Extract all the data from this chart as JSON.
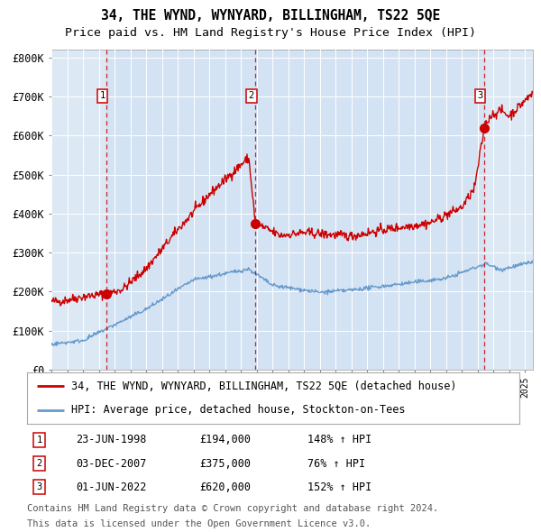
{
  "title": "34, THE WYND, WYNYARD, BILLINGHAM, TS22 5QE",
  "subtitle": "Price paid vs. HM Land Registry's House Price Index (HPI)",
  "legend_line1": "34, THE WYND, WYNYARD, BILLINGHAM, TS22 5QE (detached house)",
  "legend_line2": "HPI: Average price, detached house, Stockton-on-Tees",
  "footnote_line1": "Contains HM Land Registry data © Crown copyright and database right 2024.",
  "footnote_line2": "This data is licensed under the Open Government Licence v3.0.",
  "transactions": [
    {
      "num": 1,
      "date": "23-JUN-1998",
      "price": "£194,000",
      "pct": "148%",
      "dir": "↑",
      "label": "HPI"
    },
    {
      "num": 2,
      "date": "03-DEC-2007",
      "price": "£375,000",
      "pct": "76%",
      "dir": "↑",
      "label": "HPI"
    },
    {
      "num": 3,
      "date": "01-JUN-2022",
      "price": "£620,000",
      "pct": "152%",
      "dir": "↑",
      "label": "HPI"
    }
  ],
  "transaction_years": [
    1998.47,
    2007.92,
    2022.42
  ],
  "transaction_prices": [
    194000,
    375000,
    620000
  ],
  "ylim": [
    0,
    820000
  ],
  "yticks": [
    0,
    100000,
    200000,
    300000,
    400000,
    500000,
    600000,
    700000,
    800000
  ],
  "ytick_labels": [
    "£0",
    "£100K",
    "£200K",
    "£300K",
    "£400K",
    "£500K",
    "£600K",
    "£700K",
    "£800K"
  ],
  "xlim": [
    1995,
    2025.5
  ],
  "bg_color": "#dce9f5",
  "red_line_color": "#cc0000",
  "blue_line_color": "#6699cc",
  "grid_color": "#ffffff",
  "title_fontsize": 10.5,
  "subtitle_fontsize": 9.5,
  "axis_fontsize": 8.5,
  "legend_fontsize": 8.5,
  "table_fontsize": 8.5,
  "footnote_fontsize": 7.5
}
